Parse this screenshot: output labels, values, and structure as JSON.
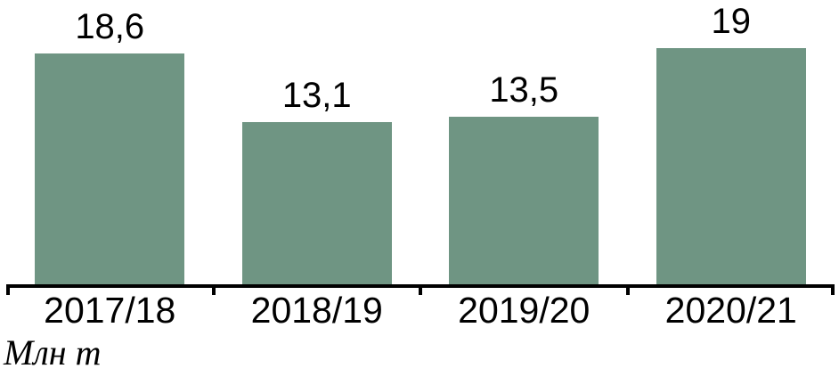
{
  "chart_data": {
    "type": "bar",
    "categories": [
      "2017/18",
      "2018/19",
      "2019/20",
      "2020/21"
    ],
    "values": [
      18.6,
      13.1,
      13.5,
      19
    ],
    "value_labels": [
      "18,6",
      "13,1",
      "13,5",
      "19"
    ],
    "unit_label": "Млн т",
    "title": "",
    "xlabel": "",
    "ylabel": "Млн т",
    "ylim": [
      0,
      22
    ],
    "grid": false,
    "legend": "none",
    "bar_color": "#6F9583",
    "axis_color": "#000000",
    "text_color": "#000000",
    "background_color": "#FFFFFF"
  }
}
